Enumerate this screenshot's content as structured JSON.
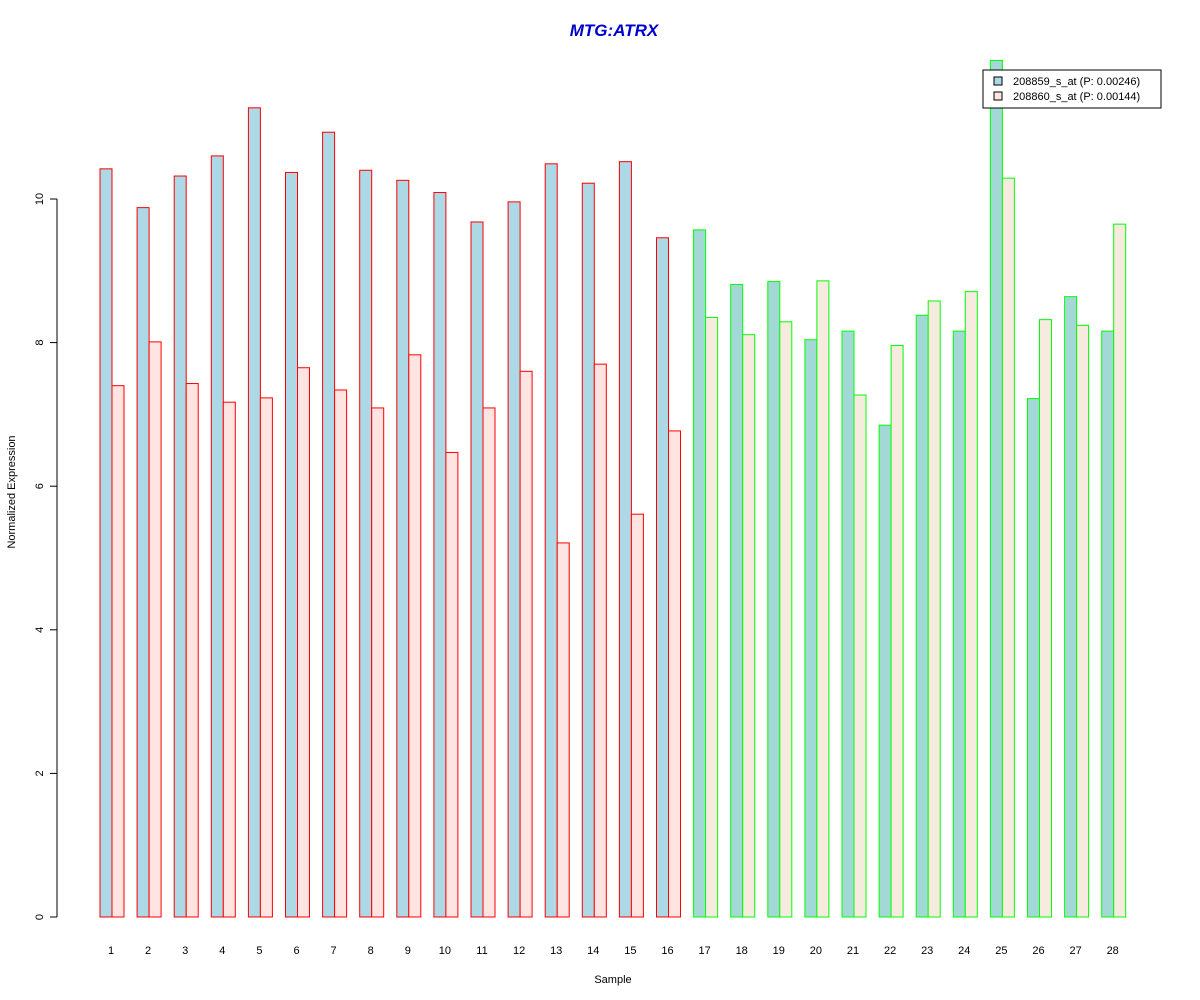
{
  "chart_data": {
    "type": "bar",
    "title": "MTG:ATRX",
    "xlabel": "Sample",
    "ylabel": "Normalized Expression",
    "ylim": [
      0,
      12
    ],
    "yticks": [
      0,
      2,
      4,
      6,
      8,
      10
    ],
    "grid": false,
    "legend_position": "top-right",
    "categories": [
      "1",
      "2",
      "3",
      "4",
      "5",
      "6",
      "7",
      "8",
      "9",
      "10",
      "11",
      "12",
      "13",
      "14",
      "15",
      "16",
      "17",
      "18",
      "19",
      "20",
      "21",
      "22",
      "23",
      "24",
      "25",
      "26",
      "27",
      "28"
    ],
    "series": [
      {
        "name": "208859_s_at (P: 0.00246)",
        "fill": "#add8e6",
        "values": [
          10.42,
          9.88,
          10.32,
          10.6,
          11.27,
          10.37,
          10.93,
          10.4,
          10.26,
          10.09,
          9.68,
          9.96,
          10.49,
          10.22,
          10.52,
          9.46,
          9.57,
          8.81,
          8.85,
          8.04,
          8.16,
          6.85,
          8.38,
          8.16,
          11.93,
          7.22,
          8.64,
          8.16
        ]
      },
      {
        "name": "208860_s_at (P: 0.00144)",
        "fill": "#ffe4e1",
        "values": [
          7.4,
          8.01,
          7.43,
          7.17,
          7.23,
          7.65,
          7.34,
          7.09,
          7.83,
          6.47,
          7.09,
          7.6,
          5.21,
          7.7,
          5.61,
          6.77,
          8.35,
          8.11,
          8.29,
          8.86,
          7.27,
          7.96,
          8.58,
          8.71,
          10.29,
          8.32,
          8.24,
          9.65
        ]
      }
    ],
    "group_border_colors": [
      "#ff0000",
      "#ff0000",
      "#ff0000",
      "#ff0000",
      "#ff0000",
      "#ff0000",
      "#ff0000",
      "#ff0000",
      "#ff0000",
      "#ff0000",
      "#ff0000",
      "#ff0000",
      "#ff0000",
      "#ff0000",
      "#ff0000",
      "#ff0000",
      "#00ff00",
      "#00ff00",
      "#00ff00",
      "#00ff00",
      "#00ff00",
      "#00ff00",
      "#00ff00",
      "#00ff00",
      "#00ff00",
      "#00ff00",
      "#00ff00",
      "#00ff00"
    ],
    "group2_fill_series1": "#a2d9d6",
    "group2_fill_series2": "#f7ebdf",
    "title_color": "#0000cd"
  }
}
